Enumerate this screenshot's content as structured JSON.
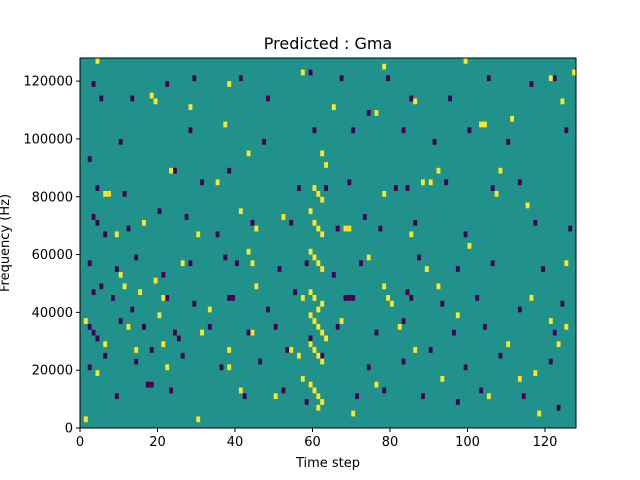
{
  "chart_data": {
    "type": "heatmap",
    "title": "Predicted : Gma",
    "xlabel": "Time step",
    "ylabel": "Frequency (Hz)",
    "xlim": [
      0,
      128
    ],
    "ylim": [
      0,
      128000
    ],
    "x_ticks": [
      0,
      20,
      40,
      60,
      80,
      100,
      120
    ],
    "y_ticks": [
      0,
      20000,
      40000,
      60000,
      80000,
      100000,
      120000
    ],
    "y_tick_labels": [
      "0",
      "20000",
      "40000",
      "60000",
      "80000",
      "100000",
      "120000"
    ],
    "grid": false,
    "colormap": "viridis",
    "value_legend": {
      "low": 0,
      "mid": 0.5,
      "high": 1
    },
    "colors": {
      "low": "#440154",
      "mid": "#21918c",
      "high": "#fde725"
    },
    "cells": {
      "low": [
        [
          3,
          118000
        ],
        [
          5,
          113000
        ],
        [
          13,
          113000
        ],
        [
          22,
          118000
        ],
        [
          29,
          120000
        ],
        [
          41,
          120000
        ],
        [
          48,
          113000
        ],
        [
          59,
          122000
        ],
        [
          67,
          120000
        ],
        [
          74,
          108000
        ],
        [
          79,
          120000
        ],
        [
          85,
          113000
        ],
        [
          95,
          113000
        ],
        [
          105,
          120000
        ],
        [
          116,
          118000
        ],
        [
          122,
          120000
        ],
        [
          10,
          98000
        ],
        [
          28,
          102000
        ],
        [
          47,
          98000
        ],
        [
          60,
          102000
        ],
        [
          70,
          102000
        ],
        [
          83,
          102000
        ],
        [
          91,
          98000
        ],
        [
          100,
          102000
        ],
        [
          110,
          98000
        ],
        [
          125,
          102000
        ],
        [
          2,
          92000
        ],
        [
          7,
          80000
        ],
        [
          4,
          82000
        ],
        [
          11,
          80000
        ],
        [
          24,
          88000
        ],
        [
          31,
          84000
        ],
        [
          38,
          88000
        ],
        [
          56,
          82000
        ],
        [
          63,
          82000
        ],
        [
          69,
          84000
        ],
        [
          81,
          82000
        ],
        [
          84,
          82000
        ],
        [
          94,
          84000
        ],
        [
          106,
          82000
        ],
        [
          113,
          84000
        ],
        [
          3,
          72000
        ],
        [
          4,
          70000
        ],
        [
          6,
          66000
        ],
        [
          12,
          68000
        ],
        [
          20,
          74000
        ],
        [
          27,
          72000
        ],
        [
          35,
          66000
        ],
        [
          44,
          70000
        ],
        [
          54,
          70000
        ],
        [
          66,
          68000
        ],
        [
          73,
          72000
        ],
        [
          77,
          68000
        ],
        [
          86,
          70000
        ],
        [
          99,
          66000
        ],
        [
          117,
          70000
        ],
        [
          126,
          68000
        ],
        [
          2,
          56000
        ],
        [
          9,
          54000
        ],
        [
          14,
          58000
        ],
        [
          21,
          52000
        ],
        [
          28,
          56000
        ],
        [
          37,
          58000
        ],
        [
          40,
          56000
        ],
        [
          51,
          54000
        ],
        [
          58,
          56000
        ],
        [
          65,
          52000
        ],
        [
          72,
          56000
        ],
        [
          87,
          58000
        ],
        [
          97,
          54000
        ],
        [
          106,
          56000
        ],
        [
          119,
          54000
        ],
        [
          3,
          46000
        ],
        [
          5,
          48000
        ],
        [
          8,
          44000
        ],
        [
          13,
          40000
        ],
        [
          22,
          44000
        ],
        [
          29,
          42000
        ],
        [
          38,
          44000
        ],
        [
          39,
          44000
        ],
        [
          48,
          40000
        ],
        [
          55,
          46000
        ],
        [
          68,
          44000
        ],
        [
          69,
          44000
        ],
        [
          70,
          44000
        ],
        [
          84,
          46000
        ],
        [
          85,
          44000
        ],
        [
          93,
          42000
        ],
        [
          102,
          44000
        ],
        [
          113,
          40000
        ],
        [
          124,
          42000
        ],
        [
          2,
          34000
        ],
        [
          3,
          32000
        ],
        [
          4,
          30000
        ],
        [
          10,
          36000
        ],
        [
          16,
          34000
        ],
        [
          24,
          32000
        ],
        [
          25,
          30000
        ],
        [
          33,
          34000
        ],
        [
          43,
          32000
        ],
        [
          50,
          34000
        ],
        [
          59,
          30000
        ],
        [
          66,
          34000
        ],
        [
          76,
          32000
        ],
        [
          83,
          36000
        ],
        [
          96,
          32000
        ],
        [
          104,
          34000
        ],
        [
          122,
          32000
        ],
        [
          2,
          20000
        ],
        [
          6,
          24000
        ],
        [
          14,
          22000
        ],
        [
          18,
          26000
        ],
        [
          26,
          24000
        ],
        [
          36,
          20000
        ],
        [
          46,
          22000
        ],
        [
          53,
          26000
        ],
        [
          62,
          24000
        ],
        [
          74,
          20000
        ],
        [
          83,
          22000
        ],
        [
          90,
          26000
        ],
        [
          99,
          20000
        ],
        [
          108,
          24000
        ],
        [
          121,
          22000
        ],
        [
          9,
          10000
        ],
        [
          17,
          14000
        ],
        [
          18,
          14000
        ],
        [
          23,
          12000
        ],
        [
          42,
          10000
        ],
        [
          52,
          12000
        ],
        [
          58,
          8000
        ],
        [
          71,
          10000
        ],
        [
          78,
          12000
        ],
        [
          88,
          10000
        ],
        [
          97,
          8000
        ],
        [
          103,
          12000
        ],
        [
          114,
          10000
        ],
        [
          123,
          6000
        ]
      ],
      "high": [
        [
          4,
          126000
        ],
        [
          19,
          112000
        ],
        [
          38,
          118000
        ],
        [
          57,
          122000
        ],
        [
          78,
          124000
        ],
        [
          99,
          126000
        ],
        [
          121,
          120000
        ],
        [
          127,
          122000
        ],
        [
          18,
          114000
        ],
        [
          28,
          110000
        ],
        [
          37,
          104000
        ],
        [
          65,
          110000
        ],
        [
          76,
          108000
        ],
        [
          86,
          112000
        ],
        [
          103,
          104000
        ],
        [
          104,
          104000
        ],
        [
          111,
          106000
        ],
        [
          124,
          112000
        ],
        [
          43,
          94000
        ],
        [
          62,
          94000
        ],
        [
          63,
          90000
        ],
        [
          92,
          88000
        ],
        [
          108,
          88000
        ],
        [
          6,
          80000
        ],
        [
          7,
          80000
        ],
        [
          23,
          88000
        ],
        [
          35,
          84000
        ],
        [
          41,
          74000
        ],
        [
          52,
          72000
        ],
        [
          60,
          82000
        ],
        [
          61,
          80000
        ],
        [
          62,
          78000
        ],
        [
          78,
          80000
        ],
        [
          88,
          84000
        ],
        [
          90,
          84000
        ],
        [
          107,
          80000
        ],
        [
          115,
          76000
        ],
        [
          9,
          66000
        ],
        [
          16,
          70000
        ],
        [
          30,
          66000
        ],
        [
          45,
          68000
        ],
        [
          59,
          74000
        ],
        [
          60,
          70000
        ],
        [
          61,
          68000
        ],
        [
          62,
          66000
        ],
        [
          68,
          68000
        ],
        [
          69,
          68000
        ],
        [
          85,
          66000
        ],
        [
          100,
          62000
        ],
        [
          10,
          52000
        ],
        [
          19,
          50000
        ],
        [
          26,
          56000
        ],
        [
          43,
          60000
        ],
        [
          44,
          56000
        ],
        [
          59,
          60000
        ],
        [
          60,
          58000
        ],
        [
          61,
          56000
        ],
        [
          62,
          54000
        ],
        [
          74,
          58000
        ],
        [
          89,
          54000
        ],
        [
          125,
          56000
        ],
        [
          11,
          48000
        ],
        [
          15,
          46000
        ],
        [
          21,
          44000
        ],
        [
          33,
          40000
        ],
        [
          45,
          48000
        ],
        [
          57,
          44000
        ],
        [
          59,
          46000
        ],
        [
          60,
          44000
        ],
        [
          61,
          40000
        ],
        [
          62,
          42000
        ],
        [
          78,
          48000
        ],
        [
          79,
          44000
        ],
        [
          80,
          42000
        ],
        [
          92,
          48000
        ],
        [
          116,
          44000
        ],
        [
          1,
          36000
        ],
        [
          12,
          34000
        ],
        [
          20,
          38000
        ],
        [
          31,
          32000
        ],
        [
          44,
          32000
        ],
        [
          59,
          38000
        ],
        [
          60,
          36000
        ],
        [
          61,
          34000
        ],
        [
          62,
          32000
        ],
        [
          63,
          30000
        ],
        [
          67,
          36000
        ],
        [
          82,
          34000
        ],
        [
          97,
          38000
        ],
        [
          121,
          36000
        ],
        [
          125,
          34000
        ],
        [
          6,
          28000
        ],
        [
          14,
          26000
        ],
        [
          21,
          28000
        ],
        [
          38,
          26000
        ],
        [
          54,
          26000
        ],
        [
          56,
          24000
        ],
        [
          59,
          28000
        ],
        [
          60,
          26000
        ],
        [
          61,
          24000
        ],
        [
          62,
          22000
        ],
        [
          86,
          26000
        ],
        [
          110,
          28000
        ],
        [
          123,
          28000
        ],
        [
          4,
          18000
        ],
        [
          22,
          20000
        ],
        [
          38,
          20000
        ],
        [
          41,
          12000
        ],
        [
          57,
          16000
        ],
        [
          59,
          14000
        ],
        [
          60,
          12000
        ],
        [
          61,
          10000
        ],
        [
          62,
          8000
        ],
        [
          76,
          14000
        ],
        [
          93,
          16000
        ],
        [
          113,
          16000
        ],
        [
          117,
          18000
        ],
        [
          1,
          2000
        ],
        [
          30,
          2000
        ],
        [
          50,
          10000
        ],
        [
          61,
          6000
        ],
        [
          70,
          4000
        ],
        [
          105,
          10000
        ],
        [
          118,
          4000
        ]
      ]
    }
  }
}
